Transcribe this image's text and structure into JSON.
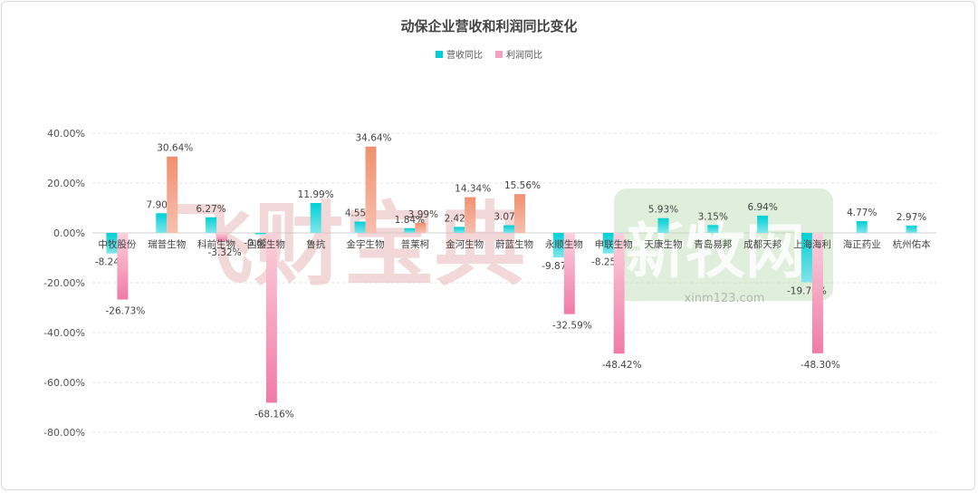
{
  "colors": {
    "revenue_top": "#00d0d6",
    "revenue_bottom": "#7fe6ea",
    "profit_pos_top": "#f0906e",
    "profit_pos_bottom": "#f8c0b0",
    "profit_neg_top": "#fbd0dc",
    "profit_neg_bottom": "#f07aa6",
    "grid": "#e6e6e6",
    "axis": "#cfcfcf",
    "watermark_red": "#e8b8b8",
    "watermark_green": "#b8dcb0"
  },
  "watermarks": {
    "left_text": "飞财宝典",
    "right_text": "新牧网",
    "right_url": "xinm123.com"
  },
  "chart_data": {
    "type": "bar",
    "title": "动保企业营收和利润同比变化",
    "legend_position": "top",
    "grid": true,
    "xlabel": "",
    "ylabel": "",
    "ylim": [
      -80,
      40
    ],
    "yticks": [
      "40.00%",
      "20.00%",
      "0.00%",
      "-20.00%",
      "-40.00%",
      "-60.00%",
      "-80.00%"
    ],
    "categories": [
      "中牧股份",
      "瑞普生物",
      "科前生物",
      "回盛生物",
      "鲁抗",
      "金宇生物",
      "普莱柯",
      "金河生物",
      "蔚蓝生物",
      "永顺生物",
      "申联生物",
      "天康生物",
      "青岛易邦",
      "成都天邦",
      "上海海利",
      "海正药业",
      "杭州佑本"
    ],
    "series": [
      {
        "name": "营收同比",
        "values": [
          -8.24,
          7.9,
          6.27,
          -0.63,
          11.99,
          4.55,
          1.84,
          2.42,
          3.07,
          -9.87,
          -8.25,
          5.93,
          3.15,
          6.94,
          -19.76,
          4.77,
          2.97
        ],
        "labels": [
          "-8.24%",
          "7.90%",
          "6.27%",
          "-0.63%",
          "11.99%",
          "4.55%",
          "1.84%",
          "2.42%",
          "3.07%",
          "-9.87%",
          "-8.25%",
          "5.93%",
          "3.15%",
          "6.94%",
          "-19.76%",
          "4.77%",
          "2.97%"
        ]
      },
      {
        "name": "利润同比",
        "values": [
          -26.73,
          30.64,
          -3.32,
          -68.16,
          null,
          34.64,
          3.99,
          14.34,
          15.56,
          -32.59,
          -48.42,
          null,
          null,
          null,
          -48.3,
          null,
          null
        ],
        "labels": [
          "-26.73%",
          "30.64%",
          "-3.32%",
          "-68.16%",
          "",
          "34.64%",
          "3.99%",
          "14.34%",
          "15.56%",
          "-32.59%",
          "-48.42%",
          "",
          "",
          "",
          "-48.30%",
          "",
          ""
        ]
      }
    ]
  }
}
